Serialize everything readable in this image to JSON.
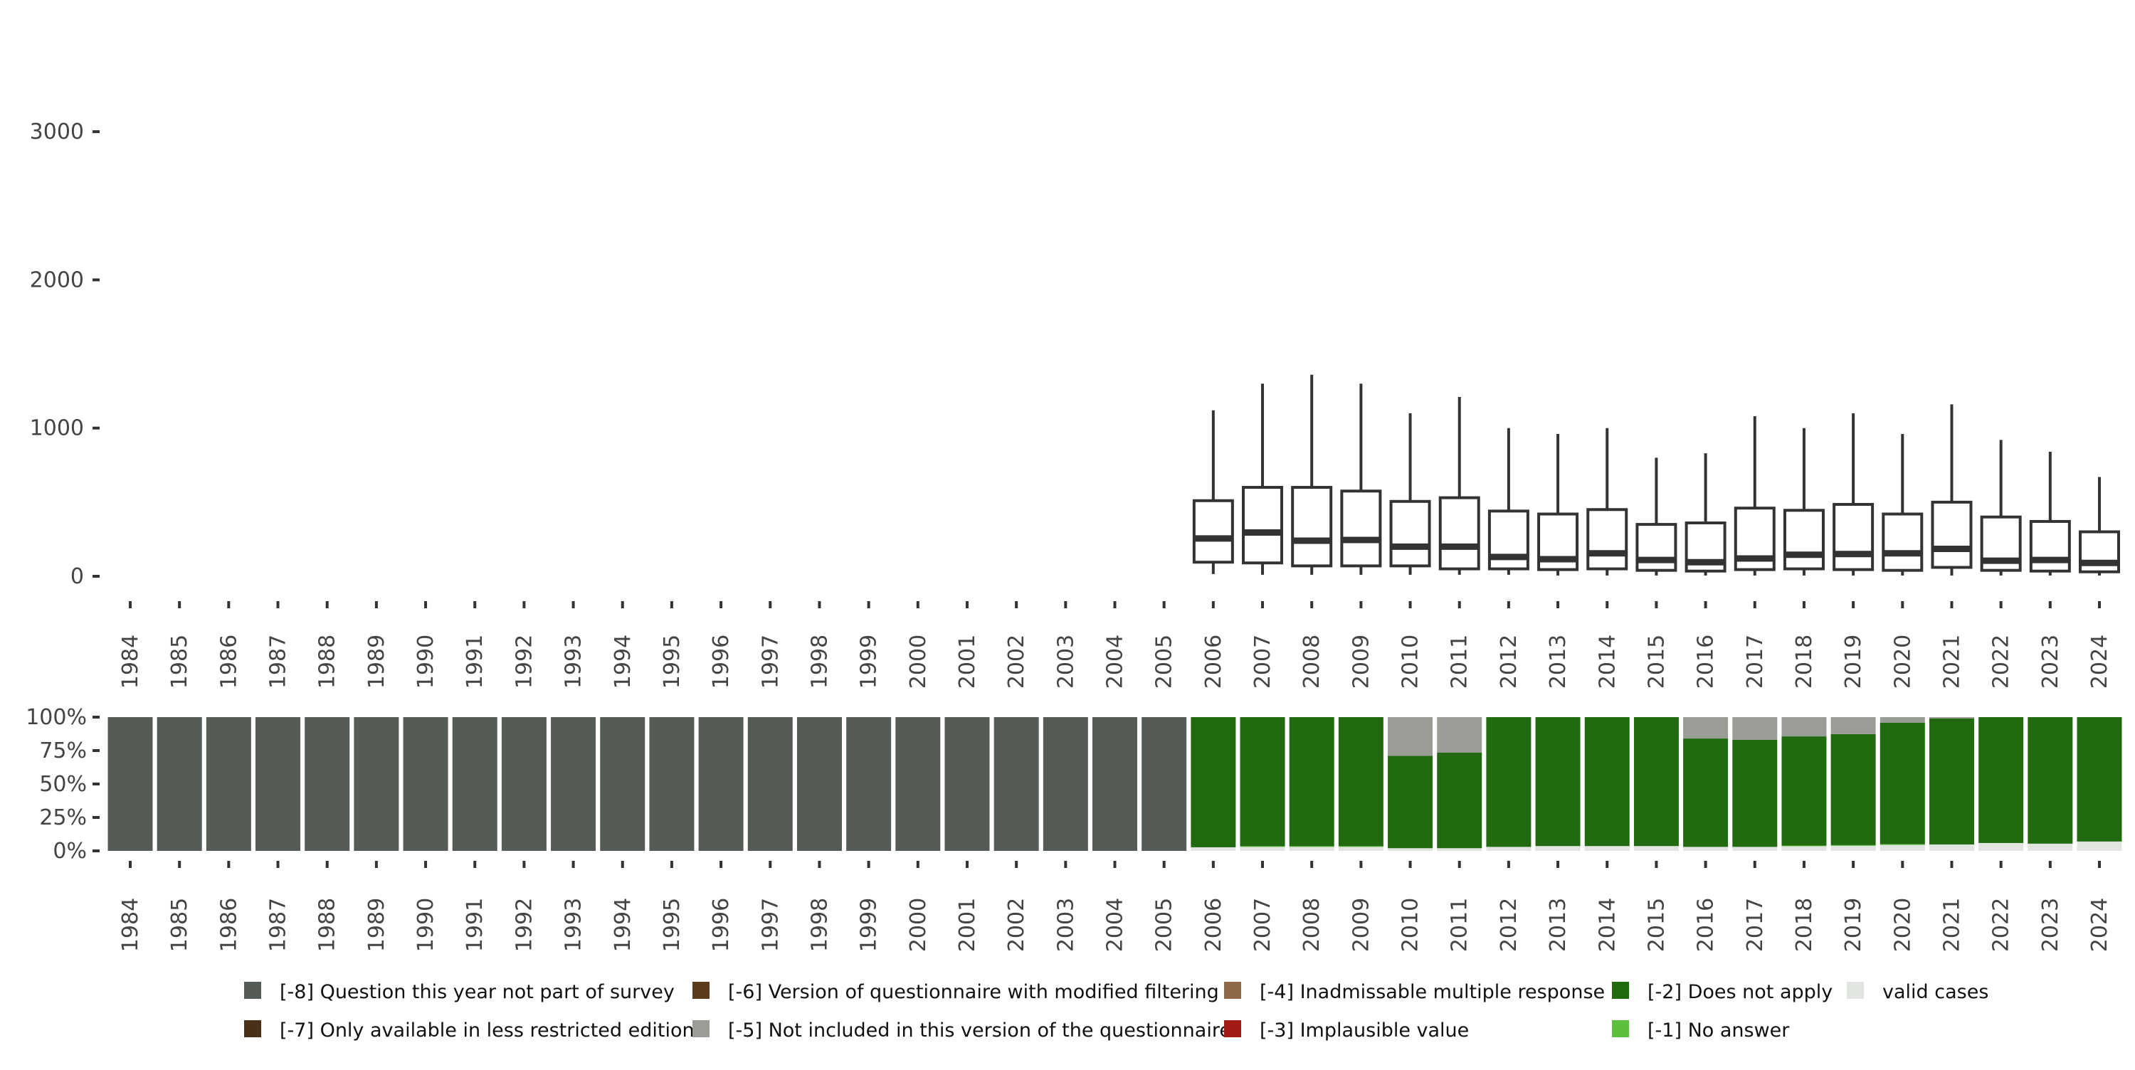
{
  "chart_data": [
    {
      "type": "boxplot",
      "title": "",
      "xlabel": "",
      "ylabel": "",
      "ylim": [
        -100,
        3100
      ],
      "yticks": [
        "0",
        "1000",
        "2000",
        "3000"
      ],
      "ytick_values": [
        0,
        1000,
        2000,
        3000
      ],
      "categories": [
        "1984",
        "1985",
        "1986",
        "1987",
        "1988",
        "1989",
        "1990",
        "1991",
        "1992",
        "1993",
        "1994",
        "1995",
        "1996",
        "1997",
        "1998",
        "1999",
        "2000",
        "2001",
        "2002",
        "2003",
        "2004",
        "2005",
        "2006",
        "2007",
        "2008",
        "2009",
        "2010",
        "2011",
        "2012",
        "2013",
        "2014",
        "2015",
        "2016",
        "2017",
        "2018",
        "2019",
        "2020",
        "2021",
        "2022",
        "2023",
        "2024"
      ],
      "boxes": {
        "2006": {
          "min": 15,
          "q1": 95,
          "median": 255,
          "q3": 510,
          "max": 1120
        },
        "2007": {
          "min": 10,
          "q1": 90,
          "median": 295,
          "q3": 600,
          "max": 1300
        },
        "2008": {
          "min": 10,
          "q1": 70,
          "median": 240,
          "q3": 600,
          "max": 1360
        },
        "2009": {
          "min": 10,
          "q1": 70,
          "median": 245,
          "q3": 575,
          "max": 1300
        },
        "2010": {
          "min": 10,
          "q1": 70,
          "median": 200,
          "q3": 505,
          "max": 1100
        },
        "2011": {
          "min": 10,
          "q1": 50,
          "median": 200,
          "q3": 530,
          "max": 1210
        },
        "2012": {
          "min": 10,
          "q1": 50,
          "median": 130,
          "q3": 440,
          "max": 1000
        },
        "2013": {
          "min": 5,
          "q1": 45,
          "median": 115,
          "q3": 420,
          "max": 960
        },
        "2014": {
          "min": 5,
          "q1": 50,
          "median": 155,
          "q3": 450,
          "max": 1000
        },
        "2015": {
          "min": 5,
          "q1": 40,
          "median": 110,
          "q3": 350,
          "max": 800
        },
        "2016": {
          "min": 5,
          "q1": 35,
          "median": 95,
          "q3": 360,
          "max": 830
        },
        "2017": {
          "min": 5,
          "q1": 45,
          "median": 120,
          "q3": 460,
          "max": 1080
        },
        "2018": {
          "min": 5,
          "q1": 50,
          "median": 145,
          "q3": 445,
          "max": 1000
        },
        "2019": {
          "min": 5,
          "q1": 45,
          "median": 150,
          "q3": 485,
          "max": 1100
        },
        "2020": {
          "min": 5,
          "q1": 40,
          "median": 155,
          "q3": 420,
          "max": 960
        },
        "2021": {
          "min": 5,
          "q1": 60,
          "median": 185,
          "q3": 500,
          "max": 1160
        },
        "2022": {
          "min": 5,
          "q1": 40,
          "median": 105,
          "q3": 400,
          "max": 920
        },
        "2023": {
          "min": 5,
          "q1": 35,
          "median": 110,
          "q3": 370,
          "max": 840
        },
        "2024": {
          "min": 5,
          "q1": 30,
          "median": 90,
          "q3": 300,
          "max": 670
        }
      }
    },
    {
      "type": "bar",
      "stacked": true,
      "ylim": [
        0,
        100
      ],
      "yticks": [
        "0%",
        "25%",
        "50%",
        "75%",
        "100%"
      ],
      "ytick_values": [
        0,
        25,
        50,
        75,
        100
      ],
      "categories": [
        "1984",
        "1985",
        "1986",
        "1987",
        "1988",
        "1989",
        "1990",
        "1991",
        "1992",
        "1993",
        "1994",
        "1995",
        "1996",
        "1997",
        "1998",
        "1999",
        "2000",
        "2001",
        "2002",
        "2003",
        "2004",
        "2005",
        "2006",
        "2007",
        "2008",
        "2009",
        "2010",
        "2011",
        "2012",
        "2013",
        "2014",
        "2015",
        "2016",
        "2017",
        "2018",
        "2019",
        "2020",
        "2021",
        "2022",
        "2023",
        "2024"
      ],
      "series": [
        {
          "name": "valid cases",
          "color": "#e1e5e0",
          "values": [
            0,
            0,
            0,
            0,
            0,
            0,
            0,
            0,
            0,
            0,
            0,
            0,
            0,
            0,
            0,
            0,
            0,
            0,
            0,
            0,
            0,
            0,
            2.7,
            3,
            3,
            3,
            2,
            2,
            3,
            3.6,
            3.6,
            3.6,
            3,
            3,
            3.5,
            3.8,
            4.5,
            4.8,
            5.9,
            5.4,
            7
          ]
        },
        {
          "name": "[-1] No answer",
          "color": "#5cbf3c",
          "values": [
            0,
            0,
            0,
            0,
            0,
            0,
            0,
            0,
            0,
            0,
            0,
            0,
            0,
            0,
            0,
            0,
            0,
            0,
            0,
            0,
            0,
            0,
            0,
            0.5,
            0.5,
            0.5,
            0,
            0,
            0,
            0,
            0,
            0,
            0,
            0,
            0.5,
            0.5,
            0.5,
            0,
            0,
            0,
            0
          ]
        },
        {
          "name": "[-2] Does not apply",
          "color": "#216a10",
          "values": [
            0,
            0,
            0,
            0,
            0,
            0,
            0,
            0,
            0,
            0,
            0,
            0,
            0,
            0,
            0,
            0,
            0,
            0,
            0,
            0,
            0,
            0,
            97.3,
            96.5,
            96.5,
            96.5,
            69,
            71.4,
            97,
            96.4,
            96.4,
            96.4,
            81,
            80,
            81.6,
            83,
            90.9,
            94.2,
            94.1,
            94.6,
            93
          ]
        },
        {
          "name": "[-5] Not included in this version of the questionnaire",
          "color": "#9a9d96",
          "values": [
            0,
            0,
            0,
            0,
            0,
            0,
            0,
            0,
            0,
            0,
            0,
            0,
            0,
            0,
            0,
            0,
            0,
            0,
            0,
            0,
            0,
            0,
            0,
            0,
            0,
            0,
            29,
            26.6,
            0,
            0,
            0,
            0,
            16,
            17,
            14.4,
            12.7,
            4.1,
            1,
            0,
            0,
            0
          ]
        },
        {
          "name": "[-8] Question this year not part of survey",
          "color": "#555b55",
          "values": [
            100,
            100,
            100,
            100,
            100,
            100,
            100,
            100,
            100,
            100,
            100,
            100,
            100,
            100,
            100,
            100,
            100,
            100,
            100,
            100,
            100,
            100,
            0,
            0,
            0,
            0,
            0,
            0,
            0,
            0,
            0,
            0,
            0,
            0,
            0,
            0,
            0,
            0,
            0,
            0,
            0
          ]
        }
      ]
    }
  ],
  "legend": [
    {
      "label": "[-8] Question this year not part of survey",
      "color": "#555b55"
    },
    {
      "label": "[-7] Only available in less restricted edition",
      "color": "#4a3018"
    },
    {
      "label": "[-6] Version of questionnaire with modified filtering",
      "color": "#5a3a1b"
    },
    {
      "label": "[-5] Not included in this version of the questionnaire",
      "color": "#9a9d96"
    },
    {
      "label": "[-4] Inadmissable multiple response",
      "color": "#8f6a48"
    },
    {
      "label": "[-3] Implausible value",
      "color": "#a11a14"
    },
    {
      "label": "[-2] Does not apply",
      "color": "#216a10"
    },
    {
      "label": "[-1] No answer",
      "color": "#5cbf3c"
    },
    {
      "label": "valid cases",
      "color": "#e1e5e0"
    }
  ]
}
